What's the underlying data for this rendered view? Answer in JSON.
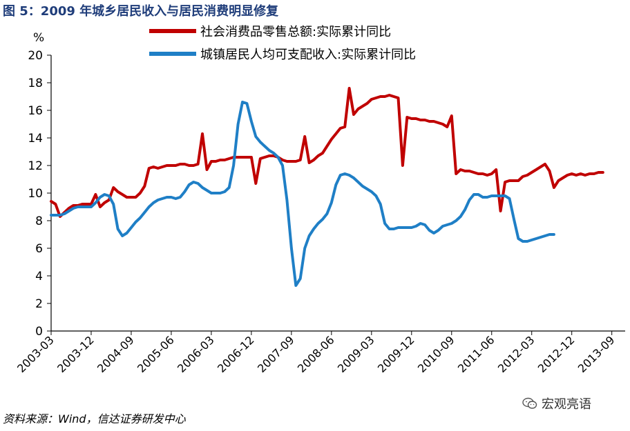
{
  "figure_title": "图 5：2009 年城乡居民收入与居民消费明显修复",
  "source_text": "资料来源：Wind，信达证券研发中心",
  "watermark_text": "宏观亮语",
  "chart_data": {
    "type": "line",
    "y_unit": "%",
    "ylim": [
      0,
      20
    ],
    "ytick_labels": [
      "0",
      "2",
      "4",
      "6",
      "8",
      "10",
      "12",
      "14",
      "16",
      "18",
      "20"
    ],
    "xtick_labels": [
      "2003-03",
      "2003-12",
      "2004-09",
      "2005-06",
      "2006-03",
      "2006-12",
      "2007-09",
      "2008-06",
      "2009-03",
      "2009-12",
      "2010-09",
      "2011-06",
      "2012-03",
      "2012-12",
      "2013-09"
    ],
    "x_range": [
      "2003-03",
      "2013-12"
    ],
    "legend_position": "top",
    "grid": false,
    "series": [
      {
        "name": "社会消费品零售总额:实际累计同比",
        "color": "#c00000",
        "points": [
          [
            "2003-03",
            9.4
          ],
          [
            "2003-04",
            9.2
          ],
          [
            "2003-05",
            8.3
          ],
          [
            "2003-06",
            8.6
          ],
          [
            "2003-07",
            8.9
          ],
          [
            "2003-08",
            9.1
          ],
          [
            "2003-09",
            9.1
          ],
          [
            "2003-10",
            9.2
          ],
          [
            "2003-11",
            9.2
          ],
          [
            "2003-12",
            9.2
          ],
          [
            "2004-01",
            9.9
          ],
          [
            "2004-02",
            9.0
          ],
          [
            "2004-03",
            9.3
          ],
          [
            "2004-04",
            9.5
          ],
          [
            "2004-05",
            10.4
          ],
          [
            "2004-06",
            10.1
          ],
          [
            "2004-07",
            9.9
          ],
          [
            "2004-08",
            9.7
          ],
          [
            "2004-09",
            9.7
          ],
          [
            "2004-10",
            9.7
          ],
          [
            "2004-11",
            10.0
          ],
          [
            "2004-12",
            10.5
          ],
          [
            "2005-01",
            11.8
          ],
          [
            "2005-02",
            11.9
          ],
          [
            "2005-03",
            11.8
          ],
          [
            "2005-04",
            11.9
          ],
          [
            "2005-05",
            12.0
          ],
          [
            "2005-06",
            12.0
          ],
          [
            "2005-07",
            12.0
          ],
          [
            "2005-08",
            12.1
          ],
          [
            "2005-09",
            12.1
          ],
          [
            "2005-10",
            12.0
          ],
          [
            "2005-11",
            12.0
          ],
          [
            "2005-12",
            12.1
          ],
          [
            "2006-01",
            14.3
          ],
          [
            "2006-02",
            11.7
          ],
          [
            "2006-03",
            12.3
          ],
          [
            "2006-04",
            12.3
          ],
          [
            "2006-05",
            12.4
          ],
          [
            "2006-06",
            12.4
          ],
          [
            "2006-07",
            12.5
          ],
          [
            "2006-08",
            12.6
          ],
          [
            "2006-09",
            12.6
          ],
          [
            "2006-10",
            12.6
          ],
          [
            "2006-11",
            12.6
          ],
          [
            "2006-12",
            12.6
          ],
          [
            "2007-01",
            10.7
          ],
          [
            "2007-02",
            12.5
          ],
          [
            "2007-03",
            12.6
          ],
          [
            "2007-04",
            12.7
          ],
          [
            "2007-05",
            12.7
          ],
          [
            "2007-06",
            12.6
          ],
          [
            "2007-07",
            12.4
          ],
          [
            "2007-08",
            12.3
          ],
          [
            "2007-09",
            12.3
          ],
          [
            "2007-10",
            12.3
          ],
          [
            "2007-11",
            12.4
          ],
          [
            "2007-12",
            14.1
          ],
          [
            "2008-01",
            12.2
          ],
          [
            "2008-02",
            12.4
          ],
          [
            "2008-03",
            12.7
          ],
          [
            "2008-04",
            12.9
          ],
          [
            "2008-05",
            13.4
          ],
          [
            "2008-06",
            13.9
          ],
          [
            "2008-07",
            14.3
          ],
          [
            "2008-08",
            14.7
          ],
          [
            "2008-09",
            14.8
          ],
          [
            "2008-10",
            17.6
          ],
          [
            "2008-11",
            15.7
          ],
          [
            "2008-12",
            16.1
          ],
          [
            "2009-01",
            16.3
          ],
          [
            "2009-02",
            16.5
          ],
          [
            "2009-03",
            16.8
          ],
          [
            "2009-04",
            16.9
          ],
          [
            "2009-05",
            17.0
          ],
          [
            "2009-06",
            17.0
          ],
          [
            "2009-07",
            17.1
          ],
          [
            "2009-08",
            17.0
          ],
          [
            "2009-09",
            16.9
          ],
          [
            "2009-10",
            12.0
          ],
          [
            "2009-11",
            15.5
          ],
          [
            "2009-12",
            15.4
          ],
          [
            "2010-01",
            15.4
          ],
          [
            "2010-02",
            15.3
          ],
          [
            "2010-03",
            15.3
          ],
          [
            "2010-04",
            15.2
          ],
          [
            "2010-05",
            15.2
          ],
          [
            "2010-06",
            15.1
          ],
          [
            "2010-07",
            15.0
          ],
          [
            "2010-08",
            14.8
          ],
          [
            "2010-09",
            15.6
          ],
          [
            "2010-10",
            11.4
          ],
          [
            "2010-11",
            11.7
          ],
          [
            "2010-12",
            11.6
          ],
          [
            "2011-01",
            11.6
          ],
          [
            "2011-02",
            11.5
          ],
          [
            "2011-03",
            11.4
          ],
          [
            "2011-04",
            11.4
          ],
          [
            "2011-05",
            11.3
          ],
          [
            "2011-06",
            11.4
          ],
          [
            "2011-07",
            11.7
          ],
          [
            "2011-08",
            8.7
          ],
          [
            "2011-09",
            10.8
          ],
          [
            "2011-10",
            10.9
          ],
          [
            "2011-11",
            10.9
          ],
          [
            "2011-12",
            10.9
          ],
          [
            "2012-01",
            11.2
          ],
          [
            "2012-02",
            11.3
          ],
          [
            "2012-03",
            11.5
          ],
          [
            "2012-04",
            11.7
          ],
          [
            "2012-05",
            11.9
          ],
          [
            "2012-06",
            12.1
          ],
          [
            "2012-07",
            11.6
          ],
          [
            "2012-08",
            10.4
          ],
          [
            "2012-09",
            10.9
          ],
          [
            "2012-10",
            11.1
          ],
          [
            "2012-11",
            11.3
          ],
          [
            "2012-12",
            11.4
          ],
          [
            "2013-01",
            11.3
          ],
          [
            "2013-02",
            11.4
          ],
          [
            "2013-03",
            11.3
          ],
          [
            "2013-04",
            11.4
          ],
          [
            "2013-05",
            11.4
          ],
          [
            "2013-06",
            11.5
          ],
          [
            "2013-07",
            11.5
          ]
        ]
      },
      {
        "name": "城镇居民人均可支配收入:实际累计同比",
        "color": "#1f7fc6",
        "points": [
          [
            "2003-03",
            8.4
          ],
          [
            "2003-04",
            8.4
          ],
          [
            "2003-05",
            8.4
          ],
          [
            "2003-06",
            8.5
          ],
          [
            "2003-07",
            8.7
          ],
          [
            "2003-08",
            8.9
          ],
          [
            "2003-09",
            9.0
          ],
          [
            "2003-10",
            9.0
          ],
          [
            "2003-11",
            9.0
          ],
          [
            "2003-12",
            9.0
          ],
          [
            "2004-01",
            9.3
          ],
          [
            "2004-02",
            9.7
          ],
          [
            "2004-03",
            9.9
          ],
          [
            "2004-04",
            9.8
          ],
          [
            "2004-05",
            9.2
          ],
          [
            "2004-06",
            7.4
          ],
          [
            "2004-07",
            6.9
          ],
          [
            "2004-08",
            7.1
          ],
          [
            "2004-09",
            7.5
          ],
          [
            "2004-10",
            7.9
          ],
          [
            "2004-11",
            8.2
          ],
          [
            "2004-12",
            8.6
          ],
          [
            "2005-01",
            9.0
          ],
          [
            "2005-02",
            9.3
          ],
          [
            "2005-03",
            9.5
          ],
          [
            "2005-04",
            9.6
          ],
          [
            "2005-05",
            9.7
          ],
          [
            "2005-06",
            9.7
          ],
          [
            "2005-07",
            9.6
          ],
          [
            "2005-08",
            9.7
          ],
          [
            "2005-09",
            10.1
          ],
          [
            "2005-10",
            10.6
          ],
          [
            "2005-11",
            10.8
          ],
          [
            "2005-12",
            10.7
          ],
          [
            "2006-01",
            10.4
          ],
          [
            "2006-02",
            10.2
          ],
          [
            "2006-03",
            10.0
          ],
          [
            "2006-04",
            10.0
          ],
          [
            "2006-05",
            10.0
          ],
          [
            "2006-06",
            10.1
          ],
          [
            "2006-07",
            10.4
          ],
          [
            "2006-08",
            12.0
          ],
          [
            "2006-09",
            15.0
          ],
          [
            "2006-10",
            16.6
          ],
          [
            "2006-11",
            16.5
          ],
          [
            "2006-12",
            15.2
          ],
          [
            "2007-01",
            14.1
          ],
          [
            "2007-02",
            13.7
          ],
          [
            "2007-03",
            13.4
          ],
          [
            "2007-04",
            13.1
          ],
          [
            "2007-05",
            12.9
          ],
          [
            "2007-06",
            12.6
          ],
          [
            "2007-07",
            12.0
          ],
          [
            "2007-08",
            9.5
          ],
          [
            "2007-09",
            6.0
          ],
          [
            "2007-10",
            3.3
          ],
          [
            "2007-11",
            3.8
          ],
          [
            "2007-12",
            6.0
          ],
          [
            "2008-01",
            6.9
          ],
          [
            "2008-02",
            7.4
          ],
          [
            "2008-03",
            7.8
          ],
          [
            "2008-04",
            8.1
          ],
          [
            "2008-05",
            8.5
          ],
          [
            "2008-06",
            9.3
          ],
          [
            "2008-07",
            10.6
          ],
          [
            "2008-08",
            11.3
          ],
          [
            "2008-09",
            11.4
          ],
          [
            "2008-10",
            11.3
          ],
          [
            "2008-11",
            11.1
          ],
          [
            "2008-12",
            10.8
          ],
          [
            "2009-01",
            10.5
          ],
          [
            "2009-02",
            10.3
          ],
          [
            "2009-03",
            10.1
          ],
          [
            "2009-04",
            9.8
          ],
          [
            "2009-05",
            9.2
          ],
          [
            "2009-06",
            7.8
          ],
          [
            "2009-07",
            7.4
          ],
          [
            "2009-08",
            7.4
          ],
          [
            "2009-09",
            7.5
          ],
          [
            "2009-10",
            7.5
          ],
          [
            "2009-11",
            7.5
          ],
          [
            "2009-12",
            7.5
          ],
          [
            "2010-01",
            7.6
          ],
          [
            "2010-02",
            7.8
          ],
          [
            "2010-03",
            7.7
          ],
          [
            "2010-04",
            7.3
          ],
          [
            "2010-05",
            7.1
          ],
          [
            "2010-06",
            7.3
          ],
          [
            "2010-07",
            7.6
          ],
          [
            "2010-08",
            7.7
          ],
          [
            "2010-09",
            7.8
          ],
          [
            "2010-10",
            8.0
          ],
          [
            "2010-11",
            8.3
          ],
          [
            "2010-12",
            8.8
          ],
          [
            "2011-01",
            9.5
          ],
          [
            "2011-02",
            9.9
          ],
          [
            "2011-03",
            9.9
          ],
          [
            "2011-04",
            9.7
          ],
          [
            "2011-05",
            9.7
          ],
          [
            "2011-06",
            9.8
          ],
          [
            "2011-07",
            9.8
          ],
          [
            "2011-08",
            9.8
          ],
          [
            "2011-09",
            9.8
          ],
          [
            "2011-10",
            9.6
          ],
          [
            "2011-11",
            8.1
          ],
          [
            "2011-12",
            6.7
          ],
          [
            "2012-01",
            6.5
          ],
          [
            "2012-02",
            6.5
          ],
          [
            "2012-03",
            6.6
          ],
          [
            "2012-04",
            6.7
          ],
          [
            "2012-05",
            6.8
          ],
          [
            "2012-06",
            6.9
          ],
          [
            "2012-07",
            7.0
          ],
          [
            "2012-08",
            7.0
          ]
        ]
      }
    ]
  }
}
